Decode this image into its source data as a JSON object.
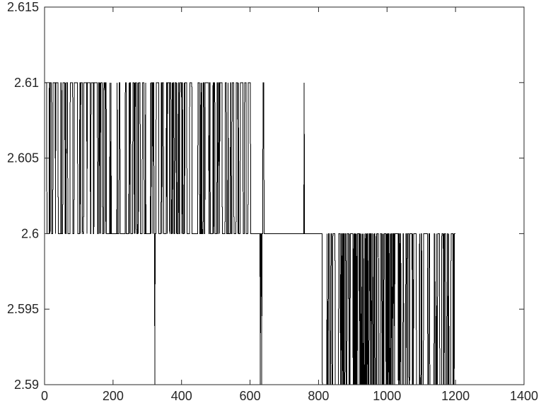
{
  "chart_data": {
    "type": "line",
    "title": "",
    "xlabel": "",
    "ylabel": "",
    "xlim": [
      0,
      1400
    ],
    "ylim": [
      2.59,
      2.615
    ],
    "x_ticks": [
      0,
      200,
      400,
      600,
      800,
      1000,
      1200,
      1400
    ],
    "x_tick_labels": [
      "0",
      "200",
      "400",
      "600",
      "800",
      "1000",
      "1200",
      "1400"
    ],
    "y_ticks": [
      2.59,
      2.595,
      2.6,
      2.605,
      2.61,
      2.615
    ],
    "y_tick_labels": [
      "2.59",
      "2.595",
      "2.6",
      "2.605",
      "2.61",
      "2.615"
    ],
    "grid": false,
    "legend": "none",
    "line_color": "#000000",
    "series": [
      {
        "x_start": 1,
        "x_step": 1,
        "segments": [
          {
            "from": 1,
            "to": 320,
            "levels": [
              2.6,
              2.61
            ],
            "description": "toggles between levels"
          },
          {
            "from": 320,
            "to": 330,
            "values_note": "single excursion to 2.59"
          },
          {
            "from": 330,
            "to": 640,
            "levels": [
              2.6,
              2.61
            ]
          },
          {
            "from": 640,
            "to": 757,
            "levels": [
              2.6
            ]
          },
          {
            "from": 757,
            "to": 760,
            "values_note": "spike to 2.61"
          },
          {
            "from": 630,
            "to": 636,
            "values_note": "dips to 2.59"
          },
          {
            "from": 760,
            "to": 1200,
            "levels": [
              2.59,
              2.6
            ]
          }
        ],
        "x_end": 1200
      }
    ]
  }
}
